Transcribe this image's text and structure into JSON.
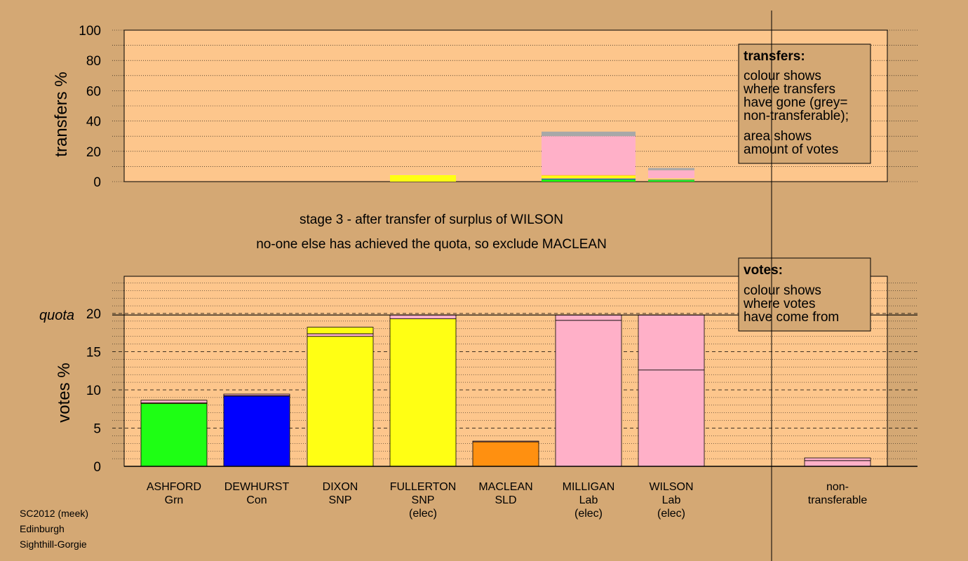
{
  "colors": {
    "background": "#d4a874",
    "plot_area": "#fdc68c",
    "legend_box": "#d4a874",
    "Grn": "#1eff14",
    "Con": "#0000ff",
    "SNP": "#ffff14",
    "SLD": "#ff9010",
    "Lab": "#ffb0c8",
    "non_transferable": "#a8a8a8"
  },
  "stage_text": {
    "line1": "stage 3 - after transfer of surplus of WILSON",
    "line2": "no-one else has achieved the quota, so exclude MACLEAN"
  },
  "footer": {
    "line1": "SC2012 (meek)",
    "line2": "Edinburgh",
    "line3": "Sighthill-Gorgie"
  },
  "legend_transfers": {
    "title": "transfers:",
    "lines1": [
      "colour shows",
      "where transfers",
      "have gone (grey=",
      "non-transferable);"
    ],
    "lines2": [
      "area shows",
      "amount of votes"
    ]
  },
  "legend_votes": {
    "title": "votes:",
    "lines": [
      "colour shows",
      "where votes",
      "have come from"
    ]
  },
  "chart_data": [
    {
      "type": "bar",
      "stacked": true,
      "ylabel": "transfers %",
      "ylim": [
        0,
        100
      ],
      "yticks": [
        0,
        20,
        40,
        60,
        80,
        100
      ],
      "grid": true,
      "legend": "top-right",
      "categories": [
        "ASHFORD",
        "DEWHURST",
        "DIXON",
        "FULLERTON",
        "MACLEAN",
        "MILLIGAN",
        "WILSON",
        "non-transferable"
      ],
      "bars": [
        {
          "category": "FULLERTON",
          "segments": [
            {
              "party": "SNP",
              "value": 4.5
            },
            {
              "party": "Lab",
              "value": 0.5
            }
          ]
        },
        {
          "category": "MILLIGAN",
          "segments": [
            {
              "party": "Grn",
              "value": 1.5
            },
            {
              "party": "Con",
              "value": 0.5
            },
            {
              "party": "SNP",
              "value": 2.0
            },
            {
              "party": "SLD",
              "value": 0.3
            },
            {
              "party": "Lab",
              "value": 25.7
            },
            {
              "party": "non_transferable",
              "value": 3.0
            }
          ]
        },
        {
          "category": "WILSON",
          "segments": [
            {
              "party": "Grn",
              "value": 1.0
            },
            {
              "party": "Con",
              "value": 0.3
            },
            {
              "party": "SNP",
              "value": 0.7
            },
            {
              "party": "Lab",
              "value": 5.5
            },
            {
              "party": "non_transferable",
              "value": 1.5
            }
          ]
        }
      ]
    },
    {
      "type": "bar",
      "stacked": true,
      "ylabel": "votes %",
      "ylim": [
        0,
        25
      ],
      "yticks": [
        0,
        5,
        10,
        15,
        20
      ],
      "quota": 19.8,
      "quota_label": "quota",
      "grid": true,
      "legend": "top-right",
      "candidates": [
        {
          "name": "ASHFORD",
          "party": "Grn",
          "elected": false,
          "segments": [
            {
              "party": "Grn",
              "value": 8.2
            },
            {
              "party": "SNP",
              "value": 0.1
            },
            {
              "party": "Lab",
              "value": 0.35
            }
          ]
        },
        {
          "name": "DEWHURST",
          "party": "Con",
          "elected": false,
          "segments": [
            {
              "party": "Con",
              "value": 9.2
            },
            {
              "party": "SNP",
              "value": 0.05
            },
            {
              "party": "Lab",
              "value": 0.2
            }
          ]
        },
        {
          "name": "DIXON",
          "party": "SNP",
          "elected": false,
          "segments": [
            {
              "party": "SNP",
              "value": 17.0
            },
            {
              "party": "Lab",
              "value": 0.35
            },
            {
              "party": "SNP",
              "value": 0.85
            }
          ]
        },
        {
          "name": "FULLERTON",
          "party": "SNP",
          "elected": true,
          "segments": [
            {
              "party": "SNP",
              "value": 19.3
            },
            {
              "party": "Lab",
              "value": 0.5
            }
          ]
        },
        {
          "name": "MACLEAN",
          "party": "SLD",
          "elected": false,
          "segments": [
            {
              "party": "SLD",
              "value": 3.2
            },
            {
              "party": "Lab",
              "value": 0.1
            }
          ]
        },
        {
          "name": "MILLIGAN",
          "party": "Lab",
          "elected": true,
          "segments": [
            {
              "party": "Lab",
              "value": 19.1
            },
            {
              "party": "Lab",
              "value": 0.7
            }
          ]
        },
        {
          "name": "WILSON",
          "party": "Lab",
          "elected": true,
          "segments": [
            {
              "party": "Lab",
              "value": 12.6
            },
            {
              "party": "Lab",
              "value": 7.2
            }
          ]
        }
      ],
      "non_transferable": {
        "label1": "non-",
        "label2": "transferable",
        "segments": [
          {
            "party": "Lab",
            "value": 0.75
          },
          {
            "party": "Lab",
            "value": 0.35
          }
        ]
      }
    }
  ]
}
